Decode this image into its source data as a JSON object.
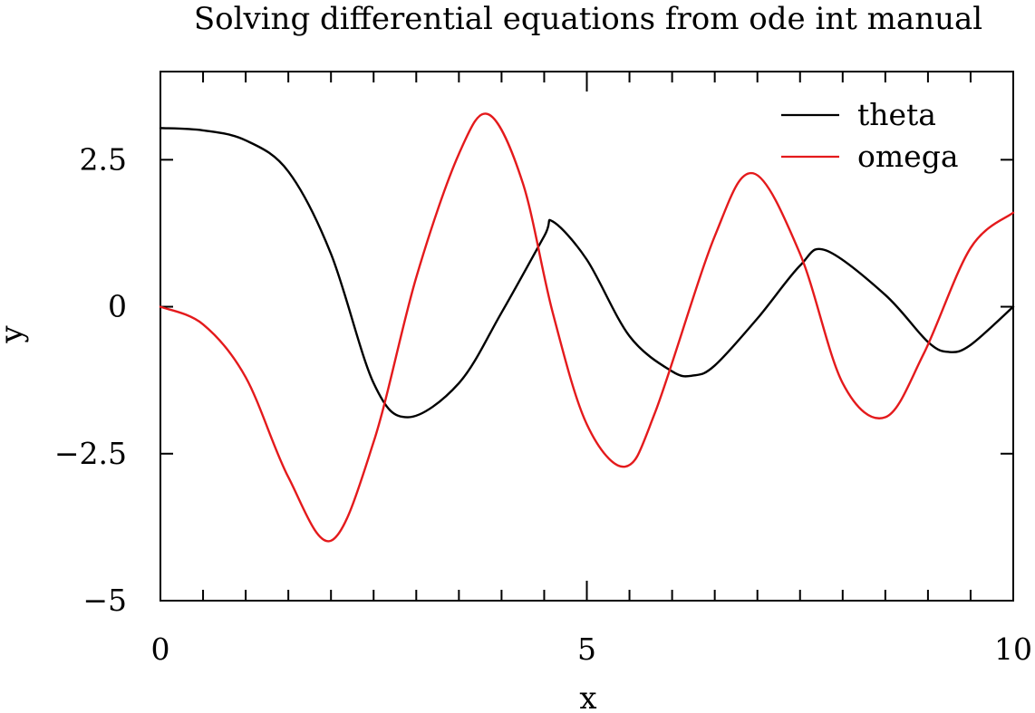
{
  "chart_data": {
    "type": "line",
    "title": "Solving differential equations from ode int manual",
    "xlabel": "x",
    "ylabel": "y",
    "xlim": [
      0,
      10
    ],
    "ylim": [
      -5,
      4
    ],
    "xticks": [
      0,
      5,
      10
    ],
    "xtick_labels": [
      "0",
      "5",
      "10"
    ],
    "yticks": [
      -5,
      -2.5,
      0,
      2.5
    ],
    "ytick_labels": [
      "−5",
      "−2.5",
      "0",
      "2.5"
    ],
    "grid": false,
    "legend_position": "top-right",
    "series": [
      {
        "name": "theta",
        "color": "#000000",
        "x": [
          0,
          0.5,
          1.0,
          1.5,
          2.0,
          2.5,
          2.9,
          3.5,
          4.0,
          4.5,
          4.6,
          5.0,
          5.5,
          6.0,
          6.25,
          6.5,
          7.0,
          7.5,
          7.8,
          8.5,
          9.0,
          9.25,
          9.5,
          10.0
        ],
        "y": [
          3.04,
          3.0,
          2.83,
          2.3,
          0.9,
          -1.3,
          -1.88,
          -1.3,
          -0.1,
          1.2,
          1.45,
          0.8,
          -0.5,
          -1.1,
          -1.17,
          -1.0,
          -0.2,
          0.7,
          0.96,
          0.2,
          -0.6,
          -0.77,
          -0.65,
          0.0
        ]
      },
      {
        "name": "omega",
        "color": "#e41a1c",
        "x": [
          0,
          0.5,
          1.0,
          1.5,
          2.0,
          2.5,
          3.0,
          3.5,
          3.85,
          4.25,
          4.6,
          5.0,
          5.45,
          5.8,
          6.5,
          6.95,
          7.5,
          8.0,
          8.5,
          8.95,
          9.5,
          10.0
        ],
        "y": [
          0.0,
          -0.3,
          -1.2,
          -2.9,
          -3.98,
          -2.3,
          0.5,
          2.6,
          3.27,
          2.1,
          -0.1,
          -2.0,
          -2.72,
          -1.8,
          1.2,
          2.27,
          0.9,
          -1.3,
          -1.88,
          -0.8,
          1.0,
          1.6
        ]
      }
    ]
  }
}
